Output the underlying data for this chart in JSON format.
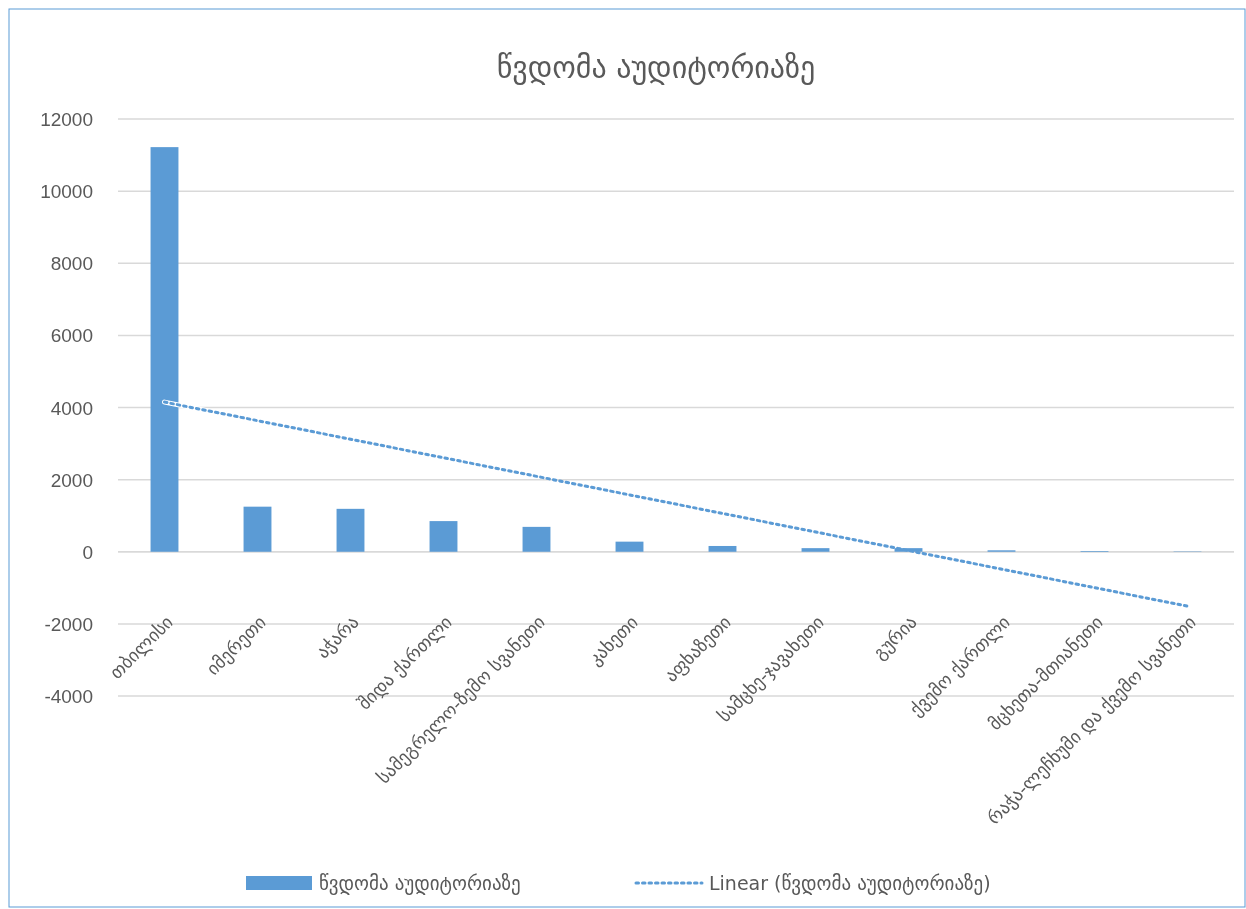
{
  "chart_data": {
    "type": "bar",
    "title": "წვდომა აუდიტორიაზე",
    "categories": [
      "თბილისი",
      "იმერეთი",
      "აჭარა",
      "შიდა ქართლი",
      "სამეგრელო-ზემო სვანეთი",
      "კახეთი",
      "აფხაზეთი",
      "სამცხე-ჯავახეთი",
      "გურია",
      "ქვემო ქართლი",
      "მცხეთა-მთიანეთი",
      "რაჭა-ლეჩხუმი და ქვემო სვანეთი"
    ],
    "series": [
      {
        "name": "წვდომა აუდიტორიაზე",
        "color": "#5b9bd5",
        "values": [
          11220,
          1250,
          1190,
          850,
          690,
          280,
          160,
          100,
          100,
          40,
          20,
          10
        ]
      },
      {
        "name": "Linear (წვდომა აუდიტორიაზე)",
        "type": "line",
        "color": "#5b9bd5",
        "line_style": "dotted",
        "x": [
          "თბილისი",
          "რაჭა-ლეჩხუმი და ქვემო სვანეთი"
        ],
        "values": [
          4150,
          -1510
        ]
      }
    ],
    "ylim": [
      -4000,
      12000
    ],
    "yticks": [
      -4000,
      -2000,
      0,
      2000,
      4000,
      6000,
      8000,
      10000,
      12000
    ],
    "grid": "y",
    "legend": "bottom"
  }
}
